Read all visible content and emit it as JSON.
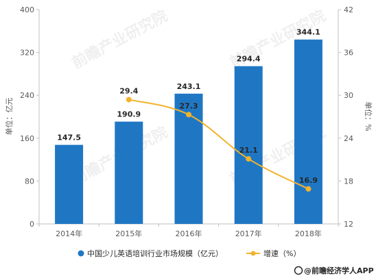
{
  "chart_data": {
    "type": "bar",
    "categories": [
      "2014年",
      "2015年",
      "2016年",
      "2017年",
      "2018年"
    ],
    "series": [
      {
        "name": "中国少儿英语培训行业市场规模（亿元）",
        "type": "bar",
        "axis": "left",
        "color": "#1f77c4",
        "values": [
          147.5,
          190.9,
          243.1,
          294.4,
          344.1
        ],
        "labels": [
          "147.5",
          "190.9",
          "243.1",
          "294.4",
          "344.1"
        ]
      },
      {
        "name": "增速（%）",
        "type": "line",
        "axis": "right",
        "color": "#f2b22d",
        "values": [
          null,
          29.4,
          27.3,
          21.1,
          16.9
        ],
        "labels": [
          "",
          "29.4",
          "27.3",
          "21.1",
          "16.9"
        ]
      }
    ],
    "ylabel": "单位：亿元",
    "ylabel_right": "单位：%",
    "ylim": [
      0,
      400
    ],
    "yticks": [
      "0",
      "80",
      "160",
      "240",
      "320",
      "400"
    ],
    "ylim_right": [
      12,
      42
    ],
    "yticks_right": [
      "12",
      "18",
      "24",
      "30",
      "36",
      "42"
    ],
    "grid": false,
    "legend": "bottom"
  },
  "footer": {
    "source": "@前瞻经济学人APP"
  }
}
